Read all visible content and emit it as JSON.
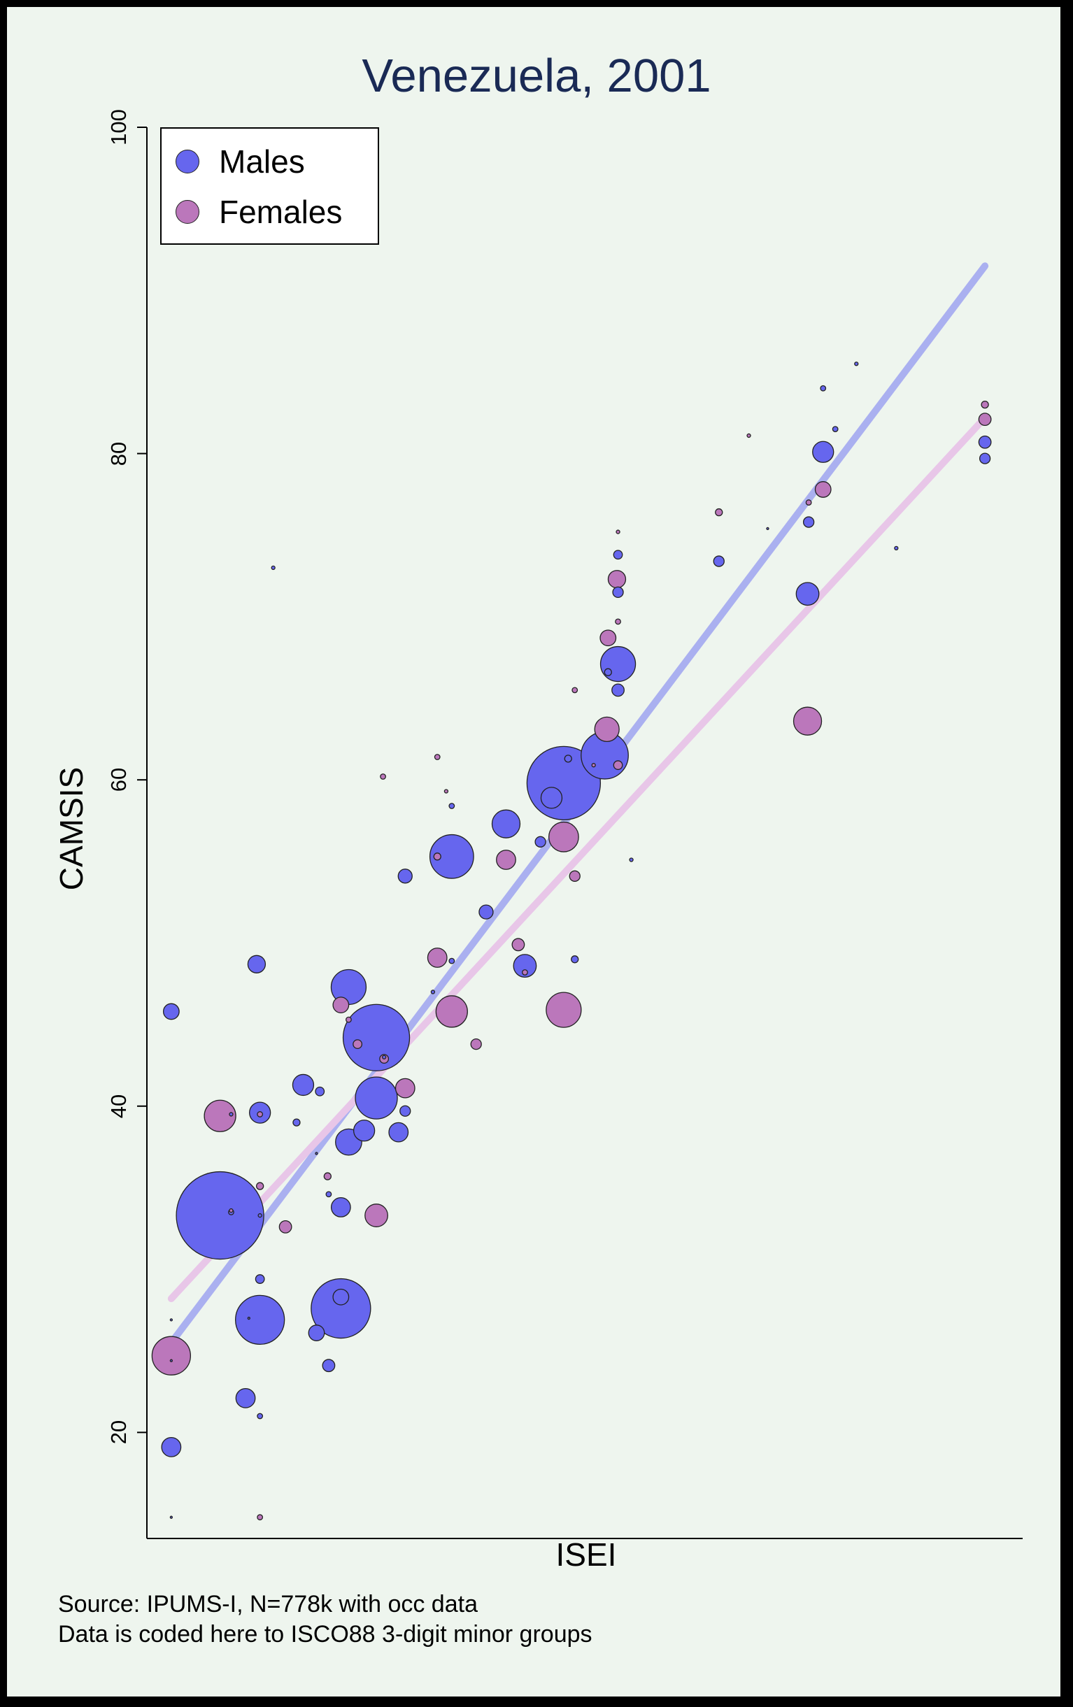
{
  "title": "Venezuela, 2001",
  "colors": {
    "males": "#6666ee",
    "females": "#bb77bb",
    "males_fit": "#aab0f0",
    "females_fit": "#e8c6e8",
    "background": "#eef5ee",
    "frame": "#000000"
  },
  "legend": {
    "placement": "top-left",
    "items": [
      "Males",
      "Females"
    ]
  },
  "notes": [
    "Source: IPUMS-I, N=778k with occ data",
    "Data is coded here to ISCO88 3-digit minor groups"
  ],
  "chart_data": {
    "type": "scatter",
    "title": "Venezuela, 2001",
    "xlabel": "ISEI",
    "ylabel": "CAMSIS",
    "xlim": [
      13,
      92
    ],
    "ylim": [
      13.5,
      100
    ],
    "y_ticks": [
      20,
      40,
      60,
      80,
      100
    ],
    "x_ticks": [],
    "grid": false,
    "legend": "top-left",
    "series": [
      {
        "name": "Males",
        "points": [
          [
            15.2,
            45.8,
            9
          ],
          [
            15.2,
            19.1,
            11
          ],
          [
            15.2,
            24.4,
            1
          ],
          [
            15.2,
            14.8,
            1
          ],
          [
            15.2,
            26.9,
            1
          ],
          [
            19.6,
            33.3,
            50
          ],
          [
            20.6,
            33.5,
            3
          ],
          [
            20.6,
            39.5,
            2
          ],
          [
            21.9,
            22.1,
            11
          ],
          [
            22.2,
            27.0,
            1
          ],
          [
            22.9,
            48.7,
            10
          ],
          [
            23.2,
            29.4,
            5
          ],
          [
            23.2,
            39.6,
            12
          ],
          [
            23.2,
            26.9,
            28
          ],
          [
            23.2,
            33.3,
            2
          ],
          [
            23.2,
            21.0,
            3
          ],
          [
            26.5,
            39.0,
            4
          ],
          [
            27.1,
            41.3,
            12
          ],
          [
            28.3,
            26.1,
            9
          ],
          [
            28.3,
            37.1,
            1
          ],
          [
            28.6,
            40.9,
            5
          ],
          [
            29.4,
            24.1,
            7
          ],
          [
            29.4,
            34.6,
            3
          ],
          [
            30.5,
            33.8,
            11
          ],
          [
            30.5,
            27.6,
            34
          ],
          [
            30.5,
            28.3,
            9
          ],
          [
            31.2,
            47.3,
            20
          ],
          [
            31.2,
            37.8,
            15
          ],
          [
            32.6,
            38.5,
            12
          ],
          [
            33.7,
            40.5,
            24
          ],
          [
            33.7,
            44.2,
            38
          ],
          [
            34.4,
            43.0,
            2
          ],
          [
            35.7,
            38.4,
            11
          ],
          [
            36.3,
            39.7,
            6
          ],
          [
            36.3,
            54.1,
            8
          ],
          [
            38.8,
            47.0,
            2
          ],
          [
            40.5,
            55.3,
            25
          ],
          [
            40.5,
            48.9,
            3
          ],
          [
            43.6,
            51.9,
            8
          ],
          [
            45.4,
            57.3,
            16
          ],
          [
            47.1,
            48.6,
            13
          ],
          [
            48.5,
            56.2,
            6
          ],
          [
            49.5,
            58.9,
            12
          ],
          [
            50.6,
            59.8,
            42
          ],
          [
            51.0,
            61.3,
            4
          ],
          [
            51.6,
            49.0,
            4
          ],
          [
            54.3,
            61.5,
            27
          ],
          [
            54.6,
            66.6,
            4
          ],
          [
            55.5,
            67.1,
            20
          ],
          [
            55.5,
            65.5,
            7
          ],
          [
            55.5,
            71.5,
            6
          ],
          [
            55.5,
            73.8,
            5
          ],
          [
            56.7,
            55.1,
            2
          ],
          [
            64.6,
            73.4,
            6
          ],
          [
            69.0,
            75.4,
            1
          ],
          [
            72.7,
            75.8,
            6
          ],
          [
            72.6,
            71.4,
            13
          ],
          [
            74.0,
            80.1,
            12
          ],
          [
            74.0,
            84.0,
            3
          ],
          [
            75.1,
            81.5,
            3
          ],
          [
            77.0,
            85.5,
            2
          ],
          [
            80.6,
            74.2,
            2
          ],
          [
            88.6,
            80.7,
            7
          ],
          [
            88.6,
            79.7,
            6
          ],
          [
            24.4,
            73.0,
            2
          ],
          [
            40.5,
            58.4,
            3
          ]
        ]
      },
      {
        "name": "Females",
        "points": [
          [
            15.2,
            24.7,
            22
          ],
          [
            19.6,
            39.4,
            18
          ],
          [
            20.6,
            33.6,
            2
          ],
          [
            23.2,
            39.5,
            3
          ],
          [
            23.2,
            35.1,
            4
          ],
          [
            25.5,
            32.6,
            7
          ],
          [
            29.3,
            35.7,
            4
          ],
          [
            30.5,
            46.2,
            9
          ],
          [
            31.2,
            45.3,
            3
          ],
          [
            32.0,
            43.8,
            5
          ],
          [
            34.4,
            42.9,
            5
          ],
          [
            36.3,
            41.1,
            11
          ],
          [
            34.3,
            60.2,
            3
          ],
          [
            39.2,
            61.4,
            3
          ],
          [
            39.2,
            49.1,
            11
          ],
          [
            39.2,
            55.3,
            4
          ],
          [
            40.0,
            59.3,
            2
          ],
          [
            40.5,
            45.8,
            18
          ],
          [
            42.7,
            43.8,
            6
          ],
          [
            45.4,
            55.1,
            11
          ],
          [
            46.5,
            49.9,
            7
          ],
          [
            47.1,
            48.2,
            3
          ],
          [
            50.6,
            56.5,
            17
          ],
          [
            50.6,
            45.9,
            20
          ],
          [
            51.6,
            54.1,
            6
          ],
          [
            51.6,
            65.5,
            3
          ],
          [
            53.3,
            60.9,
            2
          ],
          [
            54.5,
            63.1,
            14
          ],
          [
            54.6,
            68.7,
            9
          ],
          [
            55.4,
            72.3,
            10
          ],
          [
            55.5,
            69.7,
            3
          ],
          [
            55.5,
            75.2,
            2
          ],
          [
            55.5,
            60.9,
            5
          ],
          [
            64.6,
            76.4,
            4
          ],
          [
            67.3,
            81.1,
            2
          ],
          [
            72.6,
            63.6,
            16
          ],
          [
            72.7,
            77.0,
            3
          ],
          [
            74.0,
            77.8,
            9
          ],
          [
            88.6,
            83.0,
            4
          ],
          [
            88.6,
            82.1,
            7
          ],
          [
            33.7,
            33.3,
            13
          ],
          [
            23.2,
            14.8,
            3
          ]
        ]
      },
      {
        "name": "Males (linear fit)",
        "line": [
          [
            15.2,
            25.5
          ],
          [
            88.6,
            91.5
          ]
        ]
      },
      {
        "name": "Females (linear fit)",
        "line": [
          [
            15.2,
            28.2
          ],
          [
            88.6,
            82.2
          ]
        ]
      }
    ]
  }
}
